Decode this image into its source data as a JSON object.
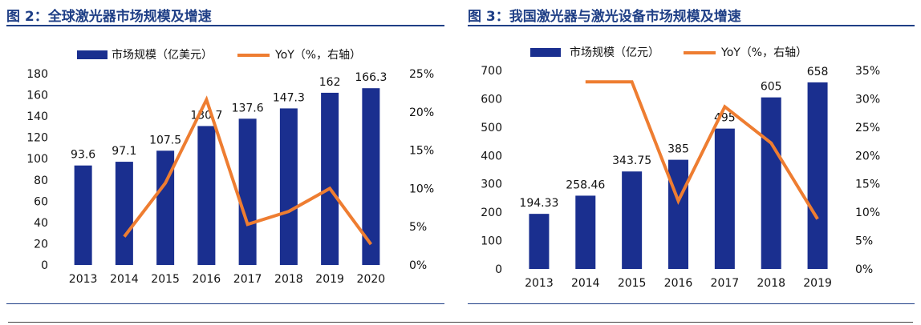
{
  "panels": [
    {
      "title": "图 2：全球激光器市场规模及增速",
      "colors": {
        "bar": "#1a2f8f",
        "line": "#ee7d31",
        "accent": "#1f3f86"
      },
      "legend": {
        "bar_label": "市场规模（亿美元）",
        "line_label": "YoY（%，右轴）"
      },
      "chart_data": {
        "type": "bar",
        "categories": [
          "2013",
          "2014",
          "2015",
          "2016",
          "2017",
          "2018",
          "2019",
          "2020"
        ],
        "series": [
          {
            "name": "市场规模（亿美元）",
            "type": "bar",
            "axis": "left",
            "values": [
              93.6,
              97.1,
              107.5,
              130.7,
              137.6,
              147.3,
              162,
              166.3
            ],
            "labels": [
              "93.6",
              "97.1",
              "107.5",
              "130.7",
              "137.6",
              "147.3",
              "162",
              "166.3"
            ]
          },
          {
            "name": "YoY（%，右轴）",
            "type": "line",
            "axis": "right",
            "values": [
              null,
              3.7,
              10.7,
              21.6,
              5.3,
              7.0,
              10.0,
              2.7
            ]
          }
        ],
        "y_left": {
          "min": 0,
          "max": 180,
          "ticks": [
            "0",
            "20",
            "40",
            "60",
            "80",
            "100",
            "120",
            "140",
            "160",
            "180"
          ]
        },
        "y_right": {
          "min": 0,
          "max": 25,
          "ticks": [
            "0%",
            "5%",
            "10%",
            "15%",
            "20%",
            "25%"
          ]
        }
      }
    },
    {
      "title": "图 3：我国激光器与激光设备市场规模及增速",
      "colors": {
        "bar": "#1a2f8f",
        "line": "#ee7d31",
        "accent": "#1f3f86"
      },
      "legend": {
        "bar_label": "市场规模（亿元）",
        "line_label": "YoY（%，右轴）"
      },
      "chart_data": {
        "type": "bar",
        "categories": [
          "2013",
          "2014",
          "2015",
          "2016",
          "2017",
          "2018",
          "2019"
        ],
        "series": [
          {
            "name": "市场规模（亿元）",
            "type": "bar",
            "axis": "left",
            "values": [
              194.33,
              258.46,
              343.75,
              385,
              495,
              605,
              658
            ],
            "labels": [
              "194.33",
              "258.46",
              "343.75",
              "385",
              "495",
              "605",
              "658"
            ]
          },
          {
            "name": "YoY（%，右轴）",
            "type": "line",
            "axis": "right",
            "values": [
              null,
              33.0,
              33.0,
              12.0,
              28.6,
              22.2,
              8.8
            ]
          }
        ],
        "y_left": {
          "min": 0,
          "max": 700,
          "ticks": [
            "0",
            "100",
            "200",
            "300",
            "400",
            "500",
            "600",
            "700"
          ]
        },
        "y_right": {
          "min": 0,
          "max": 35,
          "ticks": [
            "0%",
            "5%",
            "10%",
            "15%",
            "20%",
            "25%",
            "30%",
            "35%"
          ]
        }
      }
    }
  ]
}
